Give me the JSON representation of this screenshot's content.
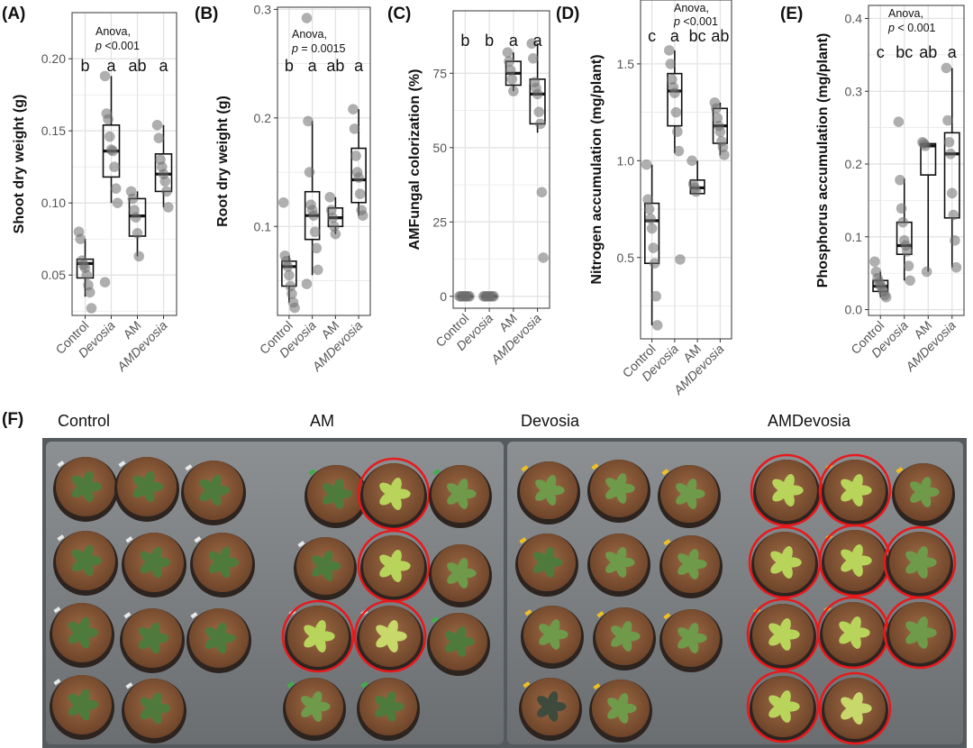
{
  "figure": {
    "panels": [
      {
        "label": "(A)",
        "ytitle": "Shoot dry weight (g)",
        "annotation": [
          "Anova,",
          "p <0.001"
        ]
      },
      {
        "label": "(B)",
        "ytitle": "Root dry weight (g)",
        "annotation": [
          "Anova,",
          "p = 0.0015"
        ]
      },
      {
        "label": "(C)",
        "ytitle": "AMFungal colorization (%)",
        "annotation": []
      },
      {
        "label": "(D)",
        "ytitle": "Nitrogen accumulation (mg/plant)",
        "annotation": [
          "Anova,",
          "p <0.001"
        ]
      },
      {
        "label": "(E)",
        "ytitle": "Phosphorus accumulation (mg/plant)",
        "annotation": [
          "Anova,",
          "p < 0.001"
        ]
      }
    ],
    "groups": [
      "Control",
      "Devosia",
      "AM",
      "AMDevosia"
    ],
    "italic_groups": [
      "Devosia",
      "AMDevosia"
    ],
    "photo_panel": {
      "label": "(F)",
      "group_titles": [
        "Control",
        "AM",
        "Devosia",
        "AMDevosia"
      ]
    },
    "colors": {
      "point": "#6d6d6d",
      "box": "#111111",
      "grid": "#e3e3e3",
      "highlight_ring": "#e8191c",
      "tray": "#7d7f81",
      "soil": "#8a5a3a"
    }
  },
  "chart_data": [
    {
      "type": "box",
      "panel": "A",
      "title": "Shoot dry weight",
      "ylabel": "Shoot dry weight (g)",
      "ylim": [
        0.022,
        0.232
      ],
      "yticks": [
        0.05,
        0.1,
        0.15,
        0.2
      ],
      "ytick_labels": [
        "0.05",
        "0.10",
        "0.15",
        "0.20"
      ],
      "categories": [
        "Control",
        "Devosia",
        "AM",
        "AMDevosia"
      ],
      "letters": [
        "b",
        "a",
        "ab",
        "a"
      ],
      "boxes": [
        {
          "q1": 0.048,
          "median": 0.058,
          "q3": 0.061,
          "low": 0.035,
          "high": 0.075
        },
        {
          "q1": 0.118,
          "median": 0.136,
          "q3": 0.154,
          "low": 0.1,
          "high": 0.188
        },
        {
          "q1": 0.077,
          "median": 0.091,
          "q3": 0.103,
          "low": 0.063,
          "high": 0.108
        },
        {
          "q1": 0.108,
          "median": 0.12,
          "q3": 0.134,
          "low": 0.097,
          "high": 0.154
        }
      ],
      "points": [
        [
          0.08,
          0.075,
          0.06,
          0.057,
          0.055,
          0.05,
          0.043,
          0.038,
          0.027
        ],
        [
          0.188,
          0.162,
          0.158,
          0.146,
          0.137,
          0.136,
          0.125,
          0.11,
          0.1,
          0.045
        ],
        [
          0.108,
          0.103,
          0.095,
          0.09,
          0.079,
          0.063
        ],
        [
          0.154,
          0.145,
          0.13,
          0.125,
          0.12,
          0.115,
          0.108,
          0.097
        ]
      ]
    },
    {
      "type": "box",
      "panel": "B",
      "title": "Root dry weight",
      "ylabel": "Root dry weight (g)",
      "ylim": [
        0.018,
        0.302
      ],
      "yticks": [
        0.1,
        0.2,
        0.3
      ],
      "ytick_labels": [
        "0.1",
        "0.2",
        "0.3"
      ],
      "categories": [
        "Control",
        "Devosia",
        "AM",
        "AMDevosia"
      ],
      "letters": [
        "b",
        "a",
        "ab",
        "a"
      ],
      "boxes": [
        {
          "q1": 0.045,
          "median": 0.063,
          "q3": 0.068,
          "low": 0.03,
          "high": 0.073
        },
        {
          "q1": 0.088,
          "median": 0.11,
          "q3": 0.132,
          "low": 0.055,
          "high": 0.197
        },
        {
          "q1": 0.1,
          "median": 0.108,
          "q3": 0.117,
          "low": 0.093,
          "high": 0.127
        },
        {
          "q1": 0.122,
          "median": 0.143,
          "q3": 0.172,
          "low": 0.11,
          "high": 0.208
        }
      ],
      "points": [
        [
          0.122,
          0.073,
          0.068,
          0.063,
          0.055,
          0.045,
          0.038,
          0.03,
          0.025
        ],
        [
          0.292,
          0.197,
          0.15,
          0.12,
          0.115,
          0.11,
          0.095,
          0.08,
          0.06,
          0.047
        ],
        [
          0.127,
          0.115,
          0.108,
          0.1,
          0.093
        ],
        [
          0.208,
          0.19,
          0.165,
          0.15,
          0.145,
          0.13,
          0.115,
          0.11
        ]
      ]
    },
    {
      "type": "box",
      "panel": "C",
      "title": "AMFungal colorization",
      "ylabel": "AMFungal colorization (%)",
      "ylim": [
        -4,
        96
      ],
      "yticks": [
        0,
        25,
        50,
        75
      ],
      "ytick_labels": [
        "0",
        "25",
        "50",
        "75"
      ],
      "categories": [
        "Control",
        "Devosia",
        "AM",
        "AMDevosia"
      ],
      "letters": [
        "b",
        "b",
        "a",
        "a"
      ],
      "boxes": [
        {
          "q1": 0,
          "median": 0,
          "q3": 0,
          "low": 0,
          "high": 0
        },
        {
          "q1": 0,
          "median": 0,
          "q3": 0,
          "low": 0,
          "high": 0
        },
        {
          "q1": 71,
          "median": 75,
          "q3": 79,
          "low": 69,
          "high": 82
        },
        {
          "q1": 58,
          "median": 68,
          "q3": 73,
          "low": 55,
          "high": 85
        }
      ],
      "points": [
        [
          0,
          0,
          0,
          0,
          0,
          0,
          0,
          0
        ],
        [
          0,
          0,
          0,
          0,
          0,
          0,
          0,
          0
        ],
        [
          82,
          79,
          76,
          73,
          69
        ],
        [
          85,
          80,
          72,
          70,
          68,
          62,
          58,
          35,
          13
        ]
      ]
    },
    {
      "type": "box",
      "panel": "D",
      "title": "Nitrogen accumulation",
      "ylabel": "Nitrogen accumulation (mg/plant)",
      "ylim": [
        0.08,
        1.83
      ],
      "yticks": [
        0.5,
        1.0,
        1.5
      ],
      "ytick_labels": [
        "0.5",
        "1.0",
        "1.5"
      ],
      "categories": [
        "Control",
        "Devosia",
        "AM",
        "AMDevosia"
      ],
      "letters": [
        "c",
        "a",
        "bc",
        "ab"
      ],
      "boxes": [
        {
          "q1": 0.47,
          "median": 0.69,
          "q3": 0.78,
          "low": 0.15,
          "high": 0.98
        },
        {
          "q1": 1.18,
          "median": 1.36,
          "q3": 1.45,
          "low": 1.04,
          "high": 1.57
        },
        {
          "q1": 0.83,
          "median": 0.86,
          "q3": 0.9,
          "low": 0.83,
          "high": 1.0
        },
        {
          "q1": 1.09,
          "median": 1.18,
          "q3": 1.27,
          "low": 1.03,
          "high": 1.3
        }
      ],
      "points": [
        [
          0.98,
          0.8,
          0.75,
          0.7,
          0.65,
          0.55,
          0.47,
          0.3,
          0.15
        ],
        [
          1.57,
          1.5,
          1.42,
          1.38,
          1.35,
          1.25,
          1.15,
          1.05,
          0.49
        ],
        [
          1.0,
          0.88,
          0.86,
          0.84
        ],
        [
          1.3,
          1.27,
          1.22,
          1.18,
          1.15,
          1.1,
          1.07,
          1.03
        ]
      ]
    },
    {
      "type": "box",
      "panel": "E",
      "title": "Phosphorus accumulation",
      "ylabel": "Phosphorus accumulation (mg/plant)",
      "ylim": [
        -0.008,
        0.418
      ],
      "yticks": [
        0.0,
        0.1,
        0.2,
        0.3,
        0.4
      ],
      "ytick_labels": [
        "0.0",
        "0.1",
        "0.2",
        "0.3",
        "0.4"
      ],
      "categories": [
        "Control",
        "Devosia",
        "AM",
        "AMDevosia"
      ],
      "letters": [
        "c",
        "bc",
        "ab",
        "a"
      ],
      "boxes": [
        {
          "q1": 0.025,
          "median": 0.032,
          "q3": 0.04,
          "low": 0.017,
          "high": 0.052
        },
        {
          "q1": 0.076,
          "median": 0.088,
          "q3": 0.12,
          "low": 0.04,
          "high": 0.18
        },
        {
          "q1": 0.185,
          "median": 0.225,
          "q3": 0.228,
          "low": 0.052,
          "high": 0.23
        },
        {
          "q1": 0.126,
          "median": 0.214,
          "q3": 0.243,
          "low": 0.058,
          "high": 0.332
        }
      ],
      "points": [
        [
          0.066,
          0.052,
          0.043,
          0.038,
          0.034,
          0.03,
          0.025,
          0.02,
          0.017
        ],
        [
          0.258,
          0.178,
          0.139,
          0.12,
          0.095,
          0.088,
          0.08,
          0.06,
          0.04
        ],
        [
          0.23,
          0.228,
          0.225,
          0.052
        ],
        [
          0.332,
          0.26,
          0.23,
          0.214,
          0.16,
          0.13,
          0.095,
          0.058
        ]
      ]
    }
  ]
}
